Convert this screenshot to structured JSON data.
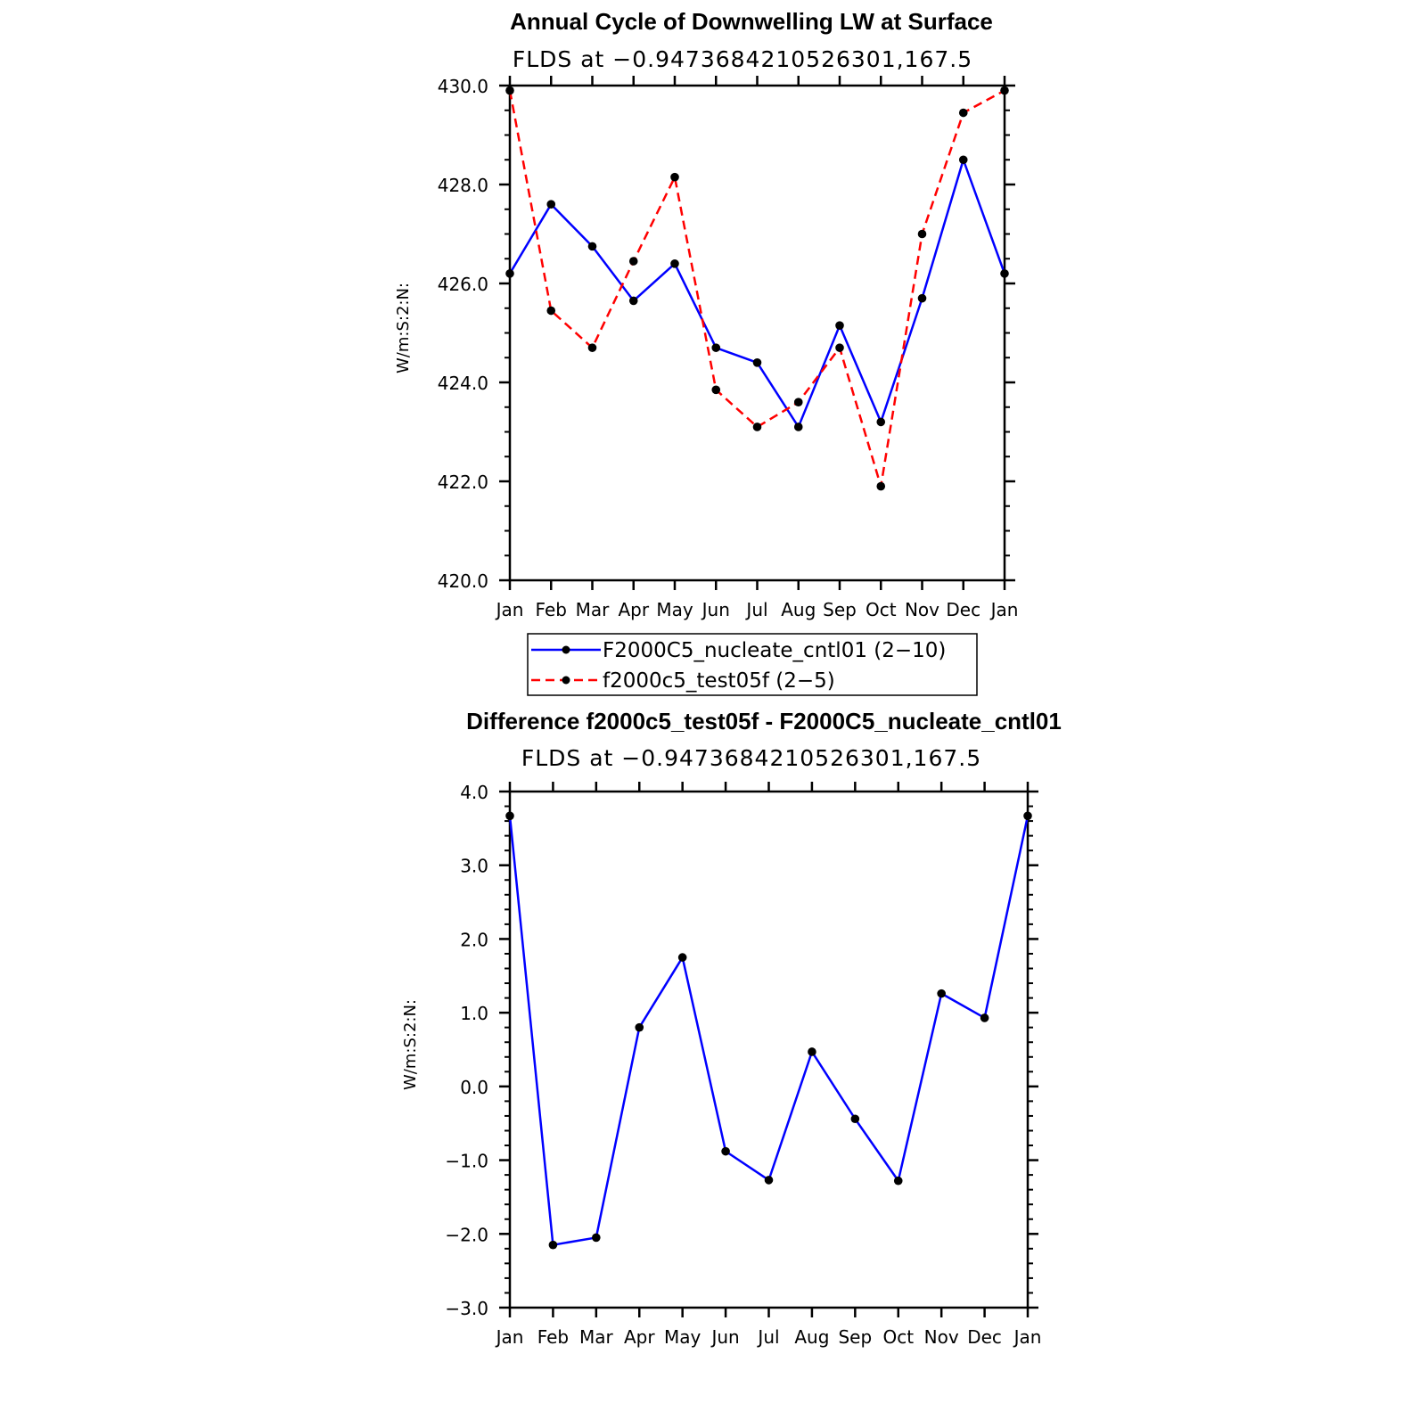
{
  "chart_data": [
    {
      "type": "line",
      "title": "Annual Cycle of Downwelling LW at Surface",
      "subtitle": "FLDS at −0.9473684210526301,167.5",
      "ylabel": "W/m:S:2:N:",
      "xlabel": "",
      "categories": [
        "Jan",
        "Feb",
        "Mar",
        "Apr",
        "May",
        "Jun",
        "Jul",
        "Aug",
        "Sep",
        "Oct",
        "Nov",
        "Dec",
        "Jan"
      ],
      "ylim": [
        420.0,
        430.0
      ],
      "yticks": [
        "420.0",
        "422.0",
        "424.0",
        "426.0",
        "428.0",
        "430.0"
      ],
      "legend_placement": "below",
      "series": [
        {
          "name": "F2000C5_nucleate_cntl01 (2−10)",
          "color": "#0000ff",
          "dash": "solid",
          "values": [
            426.2,
            427.6,
            426.75,
            425.65,
            426.4,
            424.7,
            424.4,
            423.1,
            425.15,
            423.2,
            425.7,
            428.5,
            426.2
          ]
        },
        {
          "name": "f2000c5_test05f (2−5)",
          "color": "#ff0000",
          "dash": "dashed",
          "values": [
            429.9,
            425.45,
            424.7,
            426.45,
            428.15,
            423.85,
            423.1,
            423.6,
            424.7,
            421.9,
            427.0,
            429.45,
            429.9
          ]
        }
      ]
    },
    {
      "type": "line",
      "title": "Difference f2000c5_test05f - F2000C5_nucleate_cntl01",
      "subtitle": "FLDS at −0.9473684210526301,167.5",
      "ylabel": "W/m:S:2:N:",
      "xlabel": "",
      "categories": [
        "Jan",
        "Feb",
        "Mar",
        "Apr",
        "May",
        "Jun",
        "Jul",
        "Aug",
        "Sep",
        "Oct",
        "Nov",
        "Dec",
        "Jan"
      ],
      "ylim": [
        -3.0,
        4.0
      ],
      "yticks": [
        "−3.0",
        "−2.0",
        "−1.0",
        "0.0",
        "1.0",
        "2.0",
        "3.0",
        "4.0"
      ],
      "series": [
        {
          "color": "#0000ff",
          "dash": "solid",
          "values": [
            3.67,
            -2.15,
            -2.05,
            0.8,
            1.75,
            -0.88,
            -1.27,
            0.47,
            -0.44,
            -1.28,
            1.26,
            0.93,
            3.67
          ]
        }
      ]
    }
  ]
}
